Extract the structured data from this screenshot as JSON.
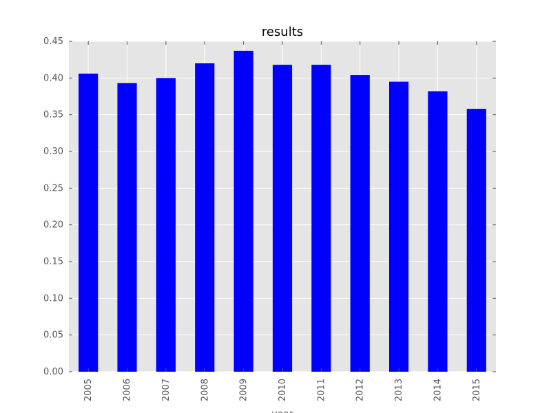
{
  "chart_data": {
    "type": "bar",
    "title": "results",
    "xlabel": "year",
    "ylabel": "",
    "categories": [
      "2005",
      "2006",
      "2007",
      "2008",
      "2009",
      "2010",
      "2011",
      "2012",
      "2013",
      "2014",
      "2015"
    ],
    "values": [
      0.406,
      0.393,
      0.4,
      0.42,
      0.437,
      0.418,
      0.418,
      0.404,
      0.395,
      0.382,
      0.358
    ],
    "ylim": [
      0,
      0.45
    ],
    "yticks": [
      "0.00",
      "0.05",
      "0.10",
      "0.15",
      "0.20",
      "0.25",
      "0.30",
      "0.35",
      "0.40",
      "0.45"
    ],
    "grid": true,
    "legend": "none",
    "colors": {
      "bar": "#0000ff",
      "plot_background": "#e5e5e5",
      "grid": "#ffffff"
    }
  }
}
